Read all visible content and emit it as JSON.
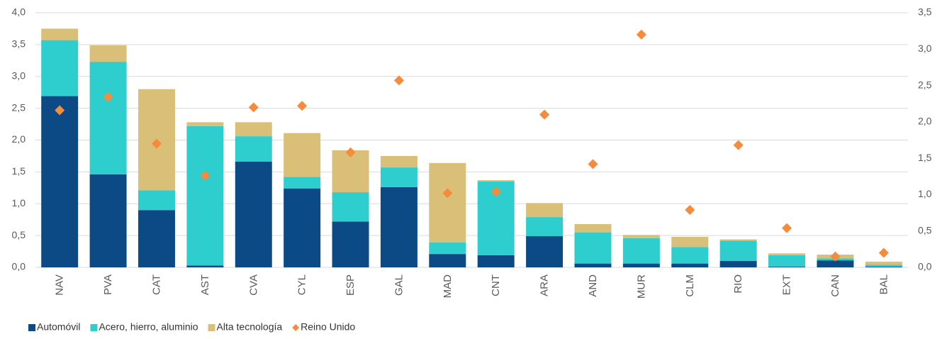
{
  "chart_data": {
    "type": "bar",
    "stacked": true,
    "categories": [
      "NAV",
      "PVA",
      "CAT",
      "AST",
      "CVA",
      "CYL",
      "ESP",
      "GAL",
      "MAD",
      "CNT",
      "ARA",
      "AND",
      "MUR",
      "CLM",
      "RIO",
      "EXT",
      "CAN",
      "BAL"
    ],
    "series": [
      {
        "name": "Automóvil",
        "color": "#0b4a85",
        "values": [
          2.69,
          1.46,
          0.9,
          0.03,
          1.66,
          1.24,
          0.72,
          1.26,
          0.21,
          0.19,
          0.49,
          0.06,
          0.06,
          0.06,
          0.1,
          0.01,
          0.11,
          0.01
        ]
      },
      {
        "name": "Acero, hierro, aluminio",
        "color": "#2ecdce",
        "values": [
          0.88,
          1.77,
          0.31,
          2.19,
          0.4,
          0.18,
          0.46,
          0.31,
          0.18,
          1.16,
          0.3,
          0.49,
          0.4,
          0.26,
          0.32,
          0.18,
          0.03,
          0.03
        ]
      },
      {
        "name": "Alta tecnología",
        "color": "#d9bf78",
        "values": [
          0.18,
          0.26,
          1.59,
          0.06,
          0.22,
          0.69,
          0.66,
          0.18,
          1.25,
          0.02,
          0.22,
          0.13,
          0.05,
          0.16,
          0.02,
          0.03,
          0.06,
          0.05
        ]
      },
      {
        "name": "Reino Unido",
        "color": "#f68b3c",
        "type": "scatter",
        "marker": "diamond",
        "axis": "y2",
        "values": [
          2.16,
          2.34,
          1.7,
          1.26,
          2.2,
          2.22,
          1.58,
          2.57,
          1.02,
          1.04,
          2.1,
          1.42,
          3.2,
          0.79,
          1.68,
          0.54,
          0.15,
          0.2
        ]
      }
    ],
    "ylim": [
      0,
      4.0
    ],
    "yticks": [
      {
        "value": 0,
        "label": "0,0"
      },
      {
        "value": 0.5,
        "label": "0,5"
      },
      {
        "value": 1.0,
        "label": "1,0"
      },
      {
        "value": 1.5,
        "label": "1,5"
      },
      {
        "value": 2.0,
        "label": "2,0"
      },
      {
        "value": 2.5,
        "label": "2,5"
      },
      {
        "value": 3.0,
        "label": "3,0"
      },
      {
        "value": 3.5,
        "label": "3,5"
      },
      {
        "value": 4.0,
        "label": "4,0"
      }
    ],
    "y2lim": [
      0,
      3.5
    ],
    "y2ticks": [
      {
        "value": 0,
        "label": "0,0"
      },
      {
        "value": 0.5,
        "label": "0,5"
      },
      {
        "value": 1.0,
        "label": "1,0"
      },
      {
        "value": 1.5,
        "label": "1,5"
      },
      {
        "value": 2.0,
        "label": "2,0"
      },
      {
        "value": 2.5,
        "label": "2,5"
      },
      {
        "value": 3.0,
        "label": "3,0"
      },
      {
        "value": 3.5,
        "label": "3,5"
      }
    ],
    "grid": true,
    "legend": "bottom-left"
  }
}
